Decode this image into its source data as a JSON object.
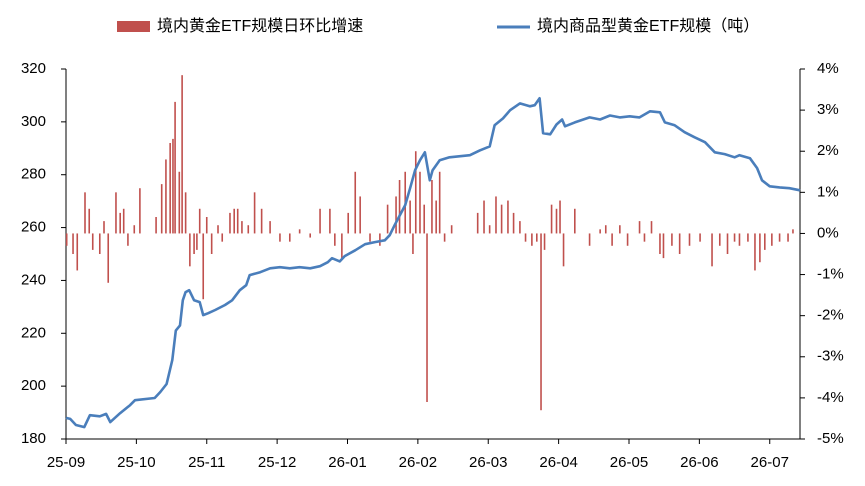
{
  "chart_data": {
    "type": "combo",
    "xlim": [
      0,
      10.43
    ],
    "xticks": [
      {
        "value": 0,
        "label": "25-09"
      },
      {
        "value": 1,
        "label": "25-10"
      },
      {
        "value": 2,
        "label": "25-11"
      },
      {
        "value": 3,
        "label": "25-12"
      },
      {
        "value": 4,
        "label": "26-01"
      },
      {
        "value": 5,
        "label": "26-02"
      },
      {
        "value": 6,
        "label": "26-03"
      },
      {
        "value": 7,
        "label": "26-04"
      },
      {
        "value": 8,
        "label": "26-05"
      },
      {
        "value": 9,
        "label": "26-06"
      },
      {
        "value": 10,
        "label": "26-07"
      }
    ],
    "ylim": [
      180,
      320
    ],
    "yticks": [
      180,
      200,
      220,
      240,
      260,
      280,
      300,
      320
    ],
    "y2lim": [
      -5,
      4
    ],
    "y2ticks": [
      {
        "value": -5,
        "label": "-5%"
      },
      {
        "value": -4,
        "label": "-4%"
      },
      {
        "value": -3,
        "label": "-3%"
      },
      {
        "value": -2,
        "label": "-2%"
      },
      {
        "value": -1,
        "label": "-1%"
      },
      {
        "value": 0,
        "label": "0%"
      },
      {
        "value": 1,
        "label": "1%"
      },
      {
        "value": 2,
        "label": "2%"
      },
      {
        "value": 3,
        "label": "3%"
      },
      {
        "value": 4,
        "label": "4%"
      }
    ],
    "series": [
      {
        "name": "境内黄金ETF规模日环比增速",
        "type": "bar",
        "axis": "y2",
        "color": "#c0504d",
        "x": [
          0.01,
          0.1,
          0.16,
          0.27,
          0.33,
          0.38,
          0.48,
          0.54,
          0.6,
          0.71,
          0.77,
          0.82,
          0.88,
          0.97,
          1.05,
          1.28,
          1.36,
          1.42,
          1.48,
          1.52,
          1.55,
          1.61,
          1.65,
          1.7,
          1.76,
          1.82,
          1.86,
          1.9,
          1.95,
          2.0,
          2.07,
          2.16,
          2.22,
          2.33,
          2.39,
          2.44,
          2.5,
          2.59,
          2.68,
          2.78,
          2.9,
          3.04,
          3.18,
          3.32,
          3.47,
          3.61,
          3.75,
          3.82,
          3.92,
          4.01,
          4.11,
          4.18,
          4.32,
          4.46,
          4.57,
          4.69,
          4.74,
          4.82,
          4.89,
          4.93,
          4.97,
          5.03,
          5.09,
          5.13,
          5.2,
          5.26,
          5.31,
          5.38,
          5.48,
          5.85,
          5.94,
          6.02,
          6.11,
          6.19,
          6.28,
          6.36,
          6.45,
          6.53,
          6.62,
          6.69,
          6.75,
          6.8,
          6.9,
          6.97,
          7.02,
          7.07,
          7.23,
          7.44,
          7.59,
          7.67,
          7.76,
          7.87,
          7.98,
          8.15,
          8.22,
          8.32,
          8.44,
          8.49,
          8.61,
          8.72,
          8.86,
          9.01,
          9.18,
          9.29,
          9.4,
          9.5,
          9.57,
          9.69,
          9.79,
          9.86,
          9.93,
          10.03,
          10.14,
          10.26,
          10.33
        ],
        "values": [
          -0.3,
          -0.5,
          -0.9,
          1.0,
          0.6,
          -0.4,
          -0.5,
          0.3,
          -1.2,
          1.0,
          0.5,
          0.6,
          -0.3,
          0.2,
          1.1,
          0.4,
          1.2,
          1.8,
          2.2,
          2.3,
          3.2,
          1.5,
          3.85,
          1.0,
          -0.8,
          -0.5,
          -0.4,
          0.6,
          -1.6,
          0.4,
          -0.5,
          0.2,
          -0.2,
          0.5,
          0.6,
          0.6,
          0.3,
          0.2,
          1.0,
          0.6,
          0.3,
          -0.2,
          -0.2,
          0.1,
          -0.1,
          0.6,
          0.6,
          -0.3,
          -0.6,
          0.5,
          1.5,
          0.9,
          -0.2,
          -0.3,
          0.7,
          0.9,
          1.3,
          1.5,
          0.8,
          -0.5,
          2.0,
          1.5,
          0.7,
          -4.1,
          1.3,
          0.8,
          1.5,
          -0.2,
          0.2,
          0.5,
          0.8,
          0.2,
          0.9,
          0.7,
          0.8,
          0.5,
          0.3,
          -0.2,
          -0.3,
          -0.2,
          -4.3,
          -0.4,
          0.7,
          0.6,
          0.8,
          -0.8,
          0.6,
          -0.3,
          0.1,
          0.2,
          -0.3,
          0.2,
          -0.3,
          0.3,
          -0.2,
          0.3,
          -0.5,
          -0.6,
          -0.3,
          -0.5,
          -0.3,
          -0.2,
          -0.8,
          -0.3,
          -0.5,
          -0.2,
          -0.3,
          -0.2,
          -0.9,
          -0.7,
          -0.4,
          -0.3,
          -0.2,
          -0.2,
          0.1
        ]
      },
      {
        "name": "境内商品型黄金ETF规模（吨）",
        "type": "line",
        "axis": "y",
        "color": "#4a7ebb",
        "x": [
          0,
          0.06,
          0.14,
          0.26,
          0.34,
          0.48,
          0.57,
          0.63,
          0.77,
          0.91,
          0.98,
          1.26,
          1.34,
          1.43,
          1.51,
          1.56,
          1.62,
          1.66,
          1.7,
          1.75,
          1.82,
          1.9,
          1.95,
          2.02,
          2.12,
          2.26,
          2.36,
          2.47,
          2.56,
          2.61,
          2.76,
          2.9,
          3.04,
          3.18,
          3.32,
          3.47,
          3.61,
          3.72,
          3.78,
          3.89,
          3.96,
          4.11,
          4.25,
          4.39,
          4.53,
          4.6,
          4.67,
          4.82,
          4.89,
          4.96,
          5.03,
          5.1,
          5.17,
          5.21,
          5.31,
          5.45,
          5.74,
          5.88,
          6.02,
          6.09,
          6.21,
          6.31,
          6.45,
          6.59,
          6.66,
          6.73,
          6.78,
          6.88,
          6.97,
          7.05,
          7.09,
          7.23,
          7.44,
          7.59,
          7.73,
          7.87,
          8.01,
          8.15,
          8.3,
          8.44,
          8.51,
          8.65,
          8.79,
          8.93,
          9.08,
          9.22,
          9.36,
          9.5,
          9.57,
          9.72,
          9.82,
          9.89,
          10.0,
          10.14,
          10.28,
          10.43
        ],
        "values": [
          188,
          187.6,
          185.3,
          184.5,
          189,
          188.6,
          189.5,
          186.4,
          189.8,
          192.8,
          194.7,
          195.5,
          197.8,
          200.8,
          209.9,
          221,
          223,
          232.5,
          235.6,
          236.3,
          232.5,
          231.8,
          226.9,
          227.6,
          228.8,
          230.7,
          232.5,
          236.3,
          238.2,
          242,
          243.1,
          244.6,
          245,
          244.6,
          245,
          244.6,
          245.4,
          246.9,
          248.4,
          247.2,
          249.2,
          251.4,
          253.7,
          254.5,
          255.2,
          257.1,
          260.9,
          268.5,
          274.9,
          281.7,
          285.5,
          288.5,
          277.9,
          281.7,
          285.5,
          286.6,
          287.4,
          289.2,
          290.7,
          298.7,
          301.3,
          304.4,
          307,
          305.9,
          306.3,
          308.9,
          295.7,
          295.3,
          299,
          300.9,
          298.3,
          299.8,
          301.7,
          300.9,
          302.4,
          301.7,
          302.1,
          301.7,
          304,
          303.6,
          299.8,
          298.7,
          296.1,
          294.2,
          292.3,
          288.5,
          287.8,
          286.6,
          287.4,
          286.2,
          282.5,
          277.9,
          275.6,
          275.2,
          274.9,
          274.1
        ]
      }
    ]
  }
}
